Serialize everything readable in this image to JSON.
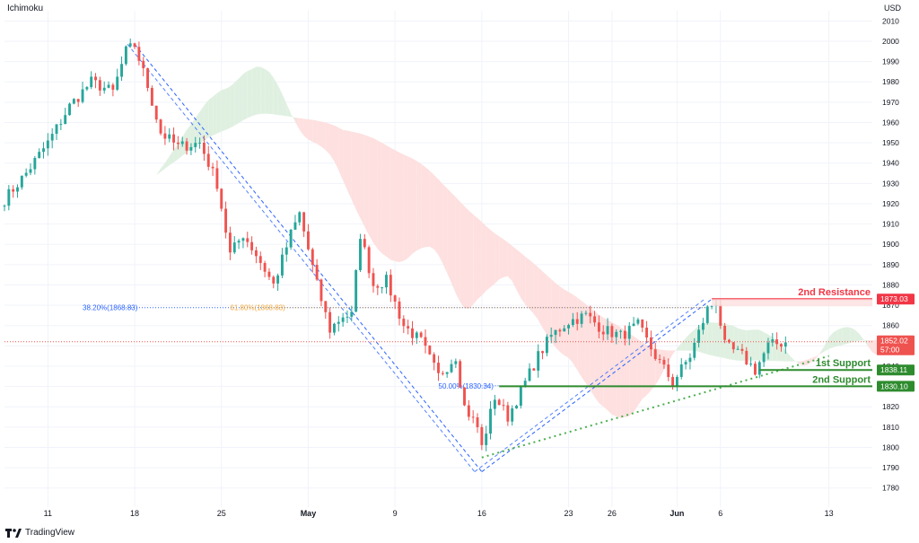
{
  "indicator": "Ichimoku",
  "currency": "USD",
  "brand": "TradingView",
  "colors": {
    "up": "#26a69a",
    "down": "#ef5350",
    "resistance": "#f23645",
    "support": "#2e8b2e",
    "fib": "#2962ff",
    "fib_label": "#f2a93b",
    "cloud_bull": "#dff0e1",
    "cloud_bear": "#fde0df",
    "price_line": "#ef5350"
  },
  "chart_data": {
    "type": "candlestick",
    "ylim": [
      1775,
      2015
    ],
    "y_ticks": [
      1780,
      1790,
      1800,
      1810,
      1820,
      1830,
      1840,
      1850,
      1860,
      1870,
      1880,
      1890,
      1900,
      1910,
      1920,
      1930,
      1940,
      1950,
      1960,
      1970,
      1980,
      1990,
      2000,
      2010
    ],
    "x_ticks": [
      {
        "label": "11",
        "i": 10
      },
      {
        "label": "18",
        "i": 30
      },
      {
        "label": "25",
        "i": 50
      },
      {
        "label": "May",
        "i": 70
      },
      {
        "label": "9",
        "i": 90
      },
      {
        "label": "16",
        "i": 110
      },
      {
        "label": "23",
        "i": 130
      },
      {
        "label": "26",
        "i": 140
      },
      {
        "label": "Jun",
        "i": 155
      },
      {
        "label": "6",
        "i": 165
      },
      {
        "label": "13",
        "i": 190
      }
    ],
    "close_path": [
      [
        0,
        1922
      ],
      [
        5,
        1935
      ],
      [
        10,
        1950
      ],
      [
        15,
        1968
      ],
      [
        20,
        1980
      ],
      [
        25,
        1975
      ],
      [
        28,
        1995
      ],
      [
        30,
        1998
      ],
      [
        33,
        1978
      ],
      [
        36,
        1955
      ],
      [
        40,
        1948
      ],
      [
        45,
        1950
      ],
      [
        49,
        1930
      ],
      [
        52,
        1895
      ],
      [
        55,
        1905
      ],
      [
        58,
        1895
      ],
      [
        62,
        1880
      ],
      [
        66,
        1905
      ],
      [
        68,
        1915
      ],
      [
        72,
        1880
      ],
      [
        75,
        1858
      ],
      [
        78,
        1865
      ],
      [
        80,
        1865
      ],
      [
        82,
        1905
      ],
      [
        85,
        1880
      ],
      [
        88,
        1882
      ],
      [
        92,
        1860
      ],
      [
        96,
        1852
      ],
      [
        100,
        1835
      ],
      [
        104,
        1845
      ],
      [
        106,
        1820
      ],
      [
        109,
        1810
      ],
      [
        110,
        1800
      ],
      [
        113,
        1825
      ],
      [
        116,
        1815
      ],
      [
        120,
        1832
      ],
      [
        123,
        1845
      ],
      [
        126,
        1855
      ],
      [
        130,
        1862
      ],
      [
        134,
        1865
      ],
      [
        138,
        1858
      ],
      [
        142,
        1855
      ],
      [
        146,
        1860
      ],
      [
        150,
        1845
      ],
      [
        154,
        1832
      ],
      [
        158,
        1845
      ],
      [
        162,
        1868
      ],
      [
        164,
        1872
      ],
      [
        166,
        1850
      ],
      [
        170,
        1845
      ],
      [
        173,
        1838
      ],
      [
        176,
        1850
      ],
      [
        180,
        1852
      ]
    ],
    "fib_levels": [
      {
        "label": "38.20%(1868.83)",
        "price": 1868.83,
        "start_i": 18
      },
      {
        "label": "61.80%(1868.83)",
        "price": 1868.83,
        "start_i": 52
      },
      {
        "label": "50.00%(1830.34)",
        "price": 1830.34,
        "start_i": 100
      }
    ],
    "fib_swings": [
      {
        "from": [
          30,
          1998.5
        ],
        "to": [
          110,
          1788
        ]
      },
      {
        "from": [
          110,
          1788
        ],
        "to": [
          163,
          1873
        ]
      }
    ],
    "levels": [
      {
        "name": "2nd Resistance",
        "price": 1873.03,
        "label": "1873.03",
        "start_i": 163,
        "role": "resistance"
      },
      {
        "name": "1st Support",
        "price": 1838.11,
        "label": "1838.11",
        "start_i": 174,
        "role": "support"
      },
      {
        "name": "2nd Support",
        "price": 1830.1,
        "label": "1830.10",
        "start_i": 114,
        "role": "support"
      }
    ],
    "current_price": {
      "label": "1852.02",
      "countdown": "57:00",
      "price": 1852.02
    },
    "trend_line": {
      "from": [
        110,
        1795
      ],
      "to": [
        190,
        1845
      ]
    }
  }
}
